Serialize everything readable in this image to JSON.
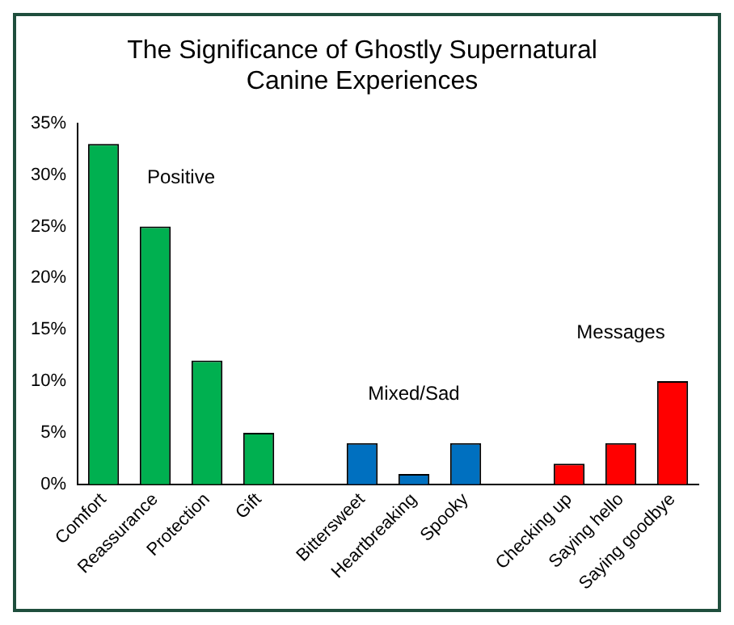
{
  "chart_data": {
    "type": "bar",
    "title": [
      "The Significance of Ghostly Supernatural",
      "Canine Experiences"
    ],
    "categories": [
      "Comfort",
      "Reassurance",
      "Protection",
      "Gift",
      null,
      "Bittersweet",
      "Heartbreaking",
      "Spooky",
      null,
      "Checking up",
      "Saying hello",
      "Saying goodbye"
    ],
    "values": [
      33,
      25,
      12,
      5,
      null,
      4,
      1,
      4,
      null,
      2,
      4,
      10
    ],
    "colors": [
      "#00b050",
      "#00b050",
      "#00b050",
      "#00b050",
      "#00b050",
      "#0070c0",
      "#0070c0",
      "#0070c0",
      "#0070c0",
      "#ff0000",
      "#ff0000",
      "#ff0000"
    ],
    "ylim": [
      0,
      35
    ],
    "yticks": [
      {
        "value": 0,
        "label": "0%"
      },
      {
        "value": 5,
        "label": "5%"
      },
      {
        "value": 10,
        "label": "10%"
      },
      {
        "value": 15,
        "label": "15%"
      },
      {
        "value": 20,
        "label": "20%"
      },
      {
        "value": 25,
        "label": "25%"
      },
      {
        "value": 30,
        "label": "30%"
      },
      {
        "value": 35,
        "label": "35%"
      }
    ],
    "grid": false,
    "legend": false,
    "annotations": [
      "Positive",
      "Mixed/Sad",
      "Messages"
    ]
  }
}
